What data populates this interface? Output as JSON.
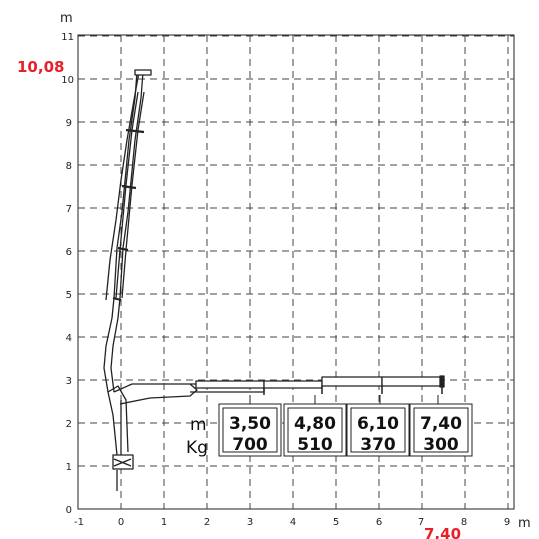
{
  "axes": {
    "y_unit": "m",
    "x_unit": "m",
    "x_ticks": [
      "-1",
      "0",
      "1",
      "2",
      "3",
      "4",
      "5",
      "6",
      "7",
      "8",
      "9"
    ],
    "y_ticks": [
      "0",
      "1",
      "2",
      "3",
      "4",
      "5",
      "6",
      "7",
      "8",
      "9",
      "10",
      "11"
    ],
    "x_range": [
      -1,
      9
    ],
    "y_range": [
      0,
      11
    ]
  },
  "highlights": {
    "max_height": "10,08",
    "max_reach": "7,40"
  },
  "load_table": {
    "distance_label": "m",
    "load_label": "Kg",
    "columns": [
      {
        "distance": "3,50",
        "load": "700"
      },
      {
        "distance": "4,80",
        "load": "510"
      },
      {
        "distance": "6,10",
        "load": "370"
      },
      {
        "distance": "7,40",
        "load": "300"
      }
    ]
  },
  "colors": {
    "highlight": "#e8202a",
    "grid": "#444444",
    "line": "#222222"
  }
}
